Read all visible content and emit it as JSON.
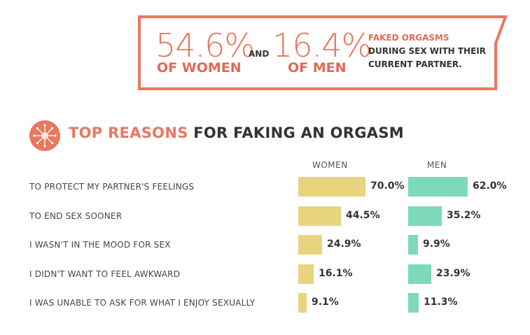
{
  "callout": {
    "women_pct": "54.6%",
    "women_label": "OF WOMEN",
    "and": "AND",
    "men_pct": "16.4%",
    "men_label": "OF MEN",
    "note_line1": "FAKED ORGASMS",
    "note_line2": "DURING SEX WITH THEIR",
    "note_line3": "CURRENT PARTNER."
  },
  "heading": {
    "highlight": "TOP REASONS",
    "rest": " FOR FAKING AN ORGASM"
  },
  "colors": {
    "accent": "#e87860",
    "women_bar": "#e8d37f",
    "men_bar": "#7ed9bc"
  },
  "icons": {
    "emblem": "starburst-icon"
  },
  "chart_data": {
    "type": "bar",
    "orientation": "horizontal",
    "title": "TOP REASONS FOR FAKING AN ORGASM",
    "categories": [
      "TO PROTECT MY PARTNER'S FEELINGS",
      "TO END SEX SOONER",
      "I WASN'T IN THE MOOD FOR SEX",
      "I DIDN'T WANT TO FEEL AWKWARD",
      "I WAS UNABLE TO ASK FOR WHAT I ENJOY SEXUALLY"
    ],
    "series": [
      {
        "name": "WOMEN",
        "values": [
          70.0,
          44.5,
          24.9,
          16.1,
          9.1
        ],
        "labels": [
          "70.0%",
          "44.5%",
          "24.9%",
          "16.1%",
          "9.1%"
        ]
      },
      {
        "name": "MEN",
        "values": [
          62.0,
          35.2,
          9.9,
          23.9,
          11.3
        ],
        "labels": [
          "62.0%",
          "35.2%",
          "9.9%",
          "23.9%",
          "11.3%"
        ]
      }
    ],
    "xlim": [
      0,
      100
    ],
    "grid": false
  }
}
